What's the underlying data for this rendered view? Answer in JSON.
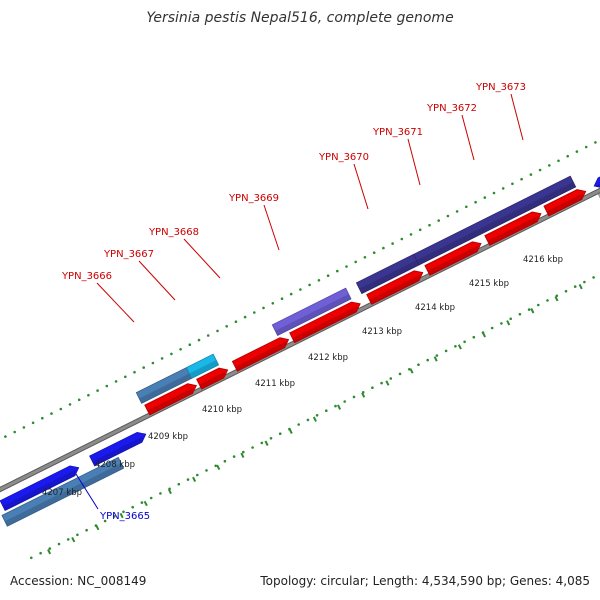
{
  "title": "Yersinia pestis Nepal516, complete genome",
  "footer": {
    "accession": "Accession: NC_008149",
    "summary": "Topology: circular; Length: 4,534,590 bp; Genes: 4,085"
  },
  "colors": {
    "backbone": "#8c8c8c",
    "dots": "#2e8b2e",
    "label_red": "#cc0000",
    "label_blue": "#0000cc",
    "tick_text": "#222222"
  },
  "ticks": [
    "4207 kbp",
    "4208 kbp",
    "4209 kbp",
    "4210 kbp",
    "4211 kbp",
    "4212 kbp",
    "4213 kbp",
    "4214 kbp",
    "4215 kbp",
    "4216 kbp"
  ],
  "genes": [
    {
      "label": "YPN_3665",
      "color": "#0000cc"
    },
    {
      "label": "YPN_3666",
      "color": "#cc0000"
    },
    {
      "label": "YPN_3667",
      "color": "#cc0000"
    },
    {
      "label": "YPN_3668",
      "color": "#cc0000"
    },
    {
      "label": "YPN_3669",
      "color": "#cc0000"
    },
    {
      "label": "YPN_3670",
      "color": "#cc0000"
    },
    {
      "label": "YPN_3671",
      "color": "#cc0000"
    },
    {
      "label": "YPN_3672",
      "color": "#cc0000"
    },
    {
      "label": "YPN_3673",
      "color": "#cc0000"
    }
  ]
}
